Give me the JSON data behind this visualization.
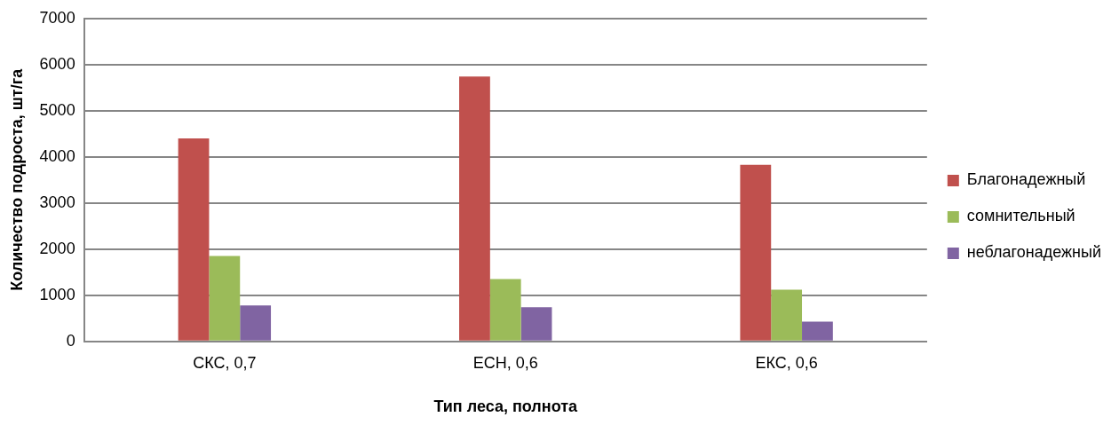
{
  "chart_data": {
    "type": "bar",
    "xlabel": "Тип леса, полнота",
    "ylabel": "Количество подроста, шт/га",
    "categories": [
      "СКС, 0,7",
      "ЕСН, 0,6",
      "ЕКС, 0,6"
    ],
    "series": [
      {
        "name": "Благонадежный",
        "color": "#c0504d",
        "values": [
          4400,
          5740,
          3830
        ]
      },
      {
        "name": "сомнительный",
        "color": "#9bbb59",
        "values": [
          1850,
          1350,
          1120
        ]
      },
      {
        "name": "неблагонадежный",
        "color": "#8064a2",
        "values": [
          780,
          740,
          430
        ]
      }
    ],
    "ylim": [
      0,
      7000
    ],
    "yticks": [
      0,
      1000,
      2000,
      3000,
      4000,
      5000,
      6000,
      7000
    ],
    "grid": "y",
    "legend": "right"
  }
}
